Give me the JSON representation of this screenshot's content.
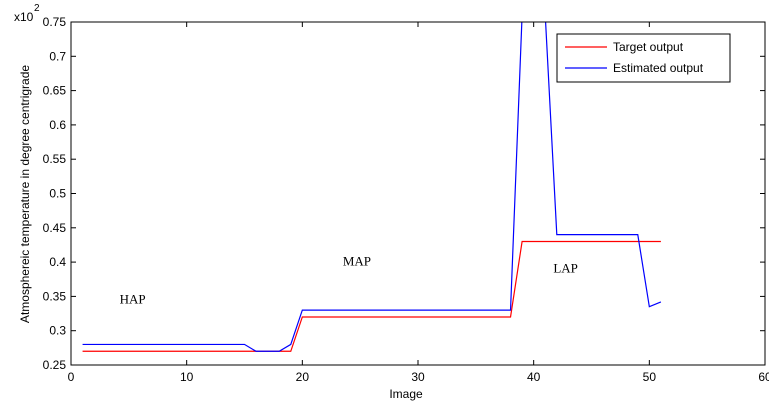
{
  "chart_data": {
    "type": "line",
    "title": "",
    "xlabel": "Image",
    "ylabel": "Atmosphereic temperature in degree centrigrade",
    "exponent_label": "x10",
    "exponent_power": "2",
    "xlim": [
      0,
      60
    ],
    "ylim": [
      0.25,
      0.75
    ],
    "x_ticks": [
      0,
      10,
      20,
      30,
      40,
      50,
      60
    ],
    "x_tick_labels": [
      "0",
      "10",
      "20",
      "30",
      "40",
      "50",
      "60"
    ],
    "y_ticks": [
      0.25,
      0.3,
      0.35,
      0.4,
      0.45,
      0.5,
      0.55,
      0.6,
      0.65,
      0.7,
      0.75
    ],
    "y_tick_labels": [
      "0.25",
      "0.3",
      "0.35",
      "0.4",
      "0.45",
      "0.5",
      "0.55",
      "0.6",
      "0.65",
      "0.7",
      "0.75"
    ],
    "grid": false,
    "legend_position": "top-right",
    "series": [
      {
        "name": "Target output",
        "color": "#ff0000",
        "x": [
          1,
          19,
          20,
          38,
          39,
          51
        ],
        "y": [
          0.27,
          0.27,
          0.32,
          0.32,
          0.43,
          0.43
        ]
      },
      {
        "name": "Estimated output",
        "color": "#0000ff",
        "x": [
          1,
          15,
          16,
          18,
          19,
          20,
          38,
          39,
          40,
          41,
          42,
          49,
          50,
          51
        ],
        "y": [
          0.28,
          0.28,
          0.27,
          0.27,
          0.28,
          0.33,
          0.33,
          0.76,
          0.8,
          0.76,
          0.44,
          0.44,
          0.335,
          0.342
        ]
      }
    ],
    "annotations": [
      {
        "text": "HAP",
        "x": 4.2,
        "y": 0.34
      },
      {
        "text": "MAP",
        "x": 23.5,
        "y": 0.395
      },
      {
        "text": "LAP",
        "x": 41.7,
        "y": 0.385
      }
    ]
  }
}
